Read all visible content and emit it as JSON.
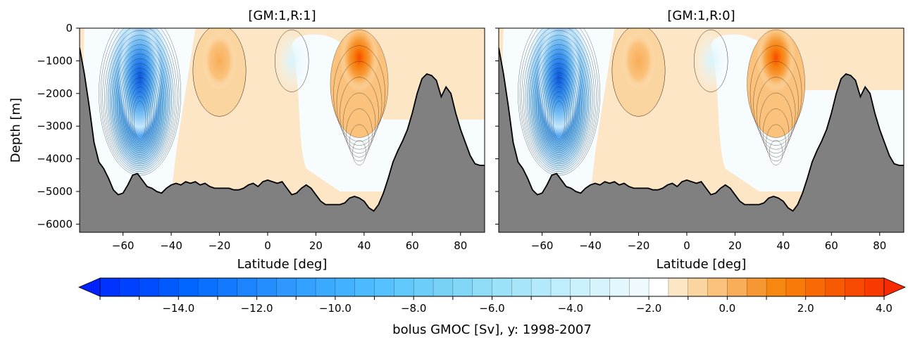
{
  "chart_data": [
    {
      "type": "contour",
      "title": "[GM:1,R:1]",
      "xlabel": "Latitude [deg]",
      "ylabel": "Depth [m]",
      "xlim": [
        -78,
        90
      ],
      "ylim": [
        -6250,
        0
      ],
      "xticks": [
        -60,
        -40,
        -20,
        0,
        20,
        40,
        60,
        80
      ],
      "yticks": [
        0,
        -1000,
        -2000,
        -3000,
        -4000,
        -5000,
        -6000
      ],
      "features": [
        {
          "kind": "negative-cell",
          "lat": -53,
          "depth": -1000,
          "value": -14.5
        },
        {
          "kind": "positive-cell",
          "lat": -20,
          "depth": -800,
          "value": 0.8
        },
        {
          "kind": "negative-cell",
          "lat": 10,
          "depth": -800,
          "value": -0.4
        },
        {
          "kind": "positive-cell",
          "lat": 38,
          "depth": -600,
          "value": 3.4
        }
      ],
      "deep_positive_fill_bottom": -2800
    },
    {
      "type": "contour",
      "title": "[GM:1,R:0]",
      "xlabel": "Latitude [deg]",
      "xlim": [
        -78,
        90
      ],
      "ylim": [
        -6250,
        0
      ],
      "xticks": [
        -60,
        -40,
        -20,
        0,
        20,
        40,
        60,
        80
      ],
      "features": [
        {
          "kind": "negative-cell",
          "lat": -53,
          "depth": -1000,
          "value": -14.5
        },
        {
          "kind": "positive-cell",
          "lat": -20,
          "depth": -800,
          "value": 0.9
        },
        {
          "kind": "negative-cell",
          "lat": 10,
          "depth": -800,
          "value": -0.4
        },
        {
          "kind": "positive-cell",
          "lat": 37,
          "depth": -600,
          "value": 3.2
        }
      ],
      "deep_positive_fill_bottom": -1900
    }
  ],
  "bathymetry": {
    "lat": [
      -78,
      -76,
      -74,
      -72,
      -70,
      -68,
      -66,
      -64,
      -62,
      -60,
      -58,
      -56,
      -54,
      -52,
      -50,
      -48,
      -46,
      -44,
      -42,
      -40,
      -38,
      -36,
      -34,
      -32,
      -30,
      -28,
      -26,
      -24,
      -22,
      -20,
      -18,
      -16,
      -14,
      -12,
      -10,
      -8,
      -6,
      -4,
      -2,
      0,
      2,
      4,
      6,
      8,
      10,
      12,
      14,
      16,
      18,
      20,
      22,
      24,
      26,
      28,
      30,
      32,
      34,
      36,
      38,
      40,
      42,
      44,
      46,
      48,
      50,
      52,
      54,
      56,
      58,
      60,
      62,
      64,
      66,
      68,
      70,
      72,
      74,
      76,
      78,
      80,
      82,
      84,
      86,
      88,
      90
    ],
    "depth": [
      -600,
      -1400,
      -2400,
      -3500,
      -4100,
      -4300,
      -4600,
      -4950,
      -5100,
      -5050,
      -4800,
      -4500,
      -4450,
      -4650,
      -4850,
      -4900,
      -5000,
      -5050,
      -4900,
      -4800,
      -4750,
      -4800,
      -4700,
      -4750,
      -4700,
      -4800,
      -4750,
      -4850,
      -4900,
      -4900,
      -4900,
      -4900,
      -4950,
      -4950,
      -4900,
      -4800,
      -4750,
      -4850,
      -4700,
      -4650,
      -4700,
      -4750,
      -4700,
      -4900,
      -5100,
      -5050,
      -4900,
      -4800,
      -4900,
      -5100,
      -5300,
      -5400,
      -5400,
      -5400,
      -5400,
      -5350,
      -5200,
      -5150,
      -5200,
      -5300,
      -5500,
      -5600,
      -5400,
      -5050,
      -4600,
      -4100,
      -3750,
      -3450,
      -3100,
      -2600,
      -2000,
      -1550,
      -1400,
      -1450,
      -1600,
      -2100,
      -1800,
      -2000,
      -2600,
      -3100,
      -3500,
      -3900,
      -4150,
      -4200,
      -4200
    ]
  },
  "colorbar": {
    "label": "bolus GMOC [Sv], y: 1998-2007",
    "min": -16,
    "max": 4,
    "step": 0.5,
    "ticks": [
      "-14.0",
      "-12.0",
      "-10.0",
      "-8.0",
      "-6.0",
      "-4.0",
      "-2.0",
      "0.0",
      "2.0",
      "4.0"
    ],
    "tick_values": [
      -14,
      -12,
      -10,
      -8,
      -6,
      -4,
      -2,
      0,
      2,
      4
    ],
    "colors": [
      "#0033ff",
      "#0040ff",
      "#004dff",
      "#005aff",
      "#0066ff",
      "#0a70ff",
      "#137aff",
      "#1c84ff",
      "#258eff",
      "#2e98ff",
      "#33a1ff",
      "#3aaaff",
      "#42b2ff",
      "#4bbaff",
      "#55c2ff",
      "#60c8fb",
      "#6bcdf8",
      "#77d2f6",
      "#83d7f6",
      "#8fdcf7",
      "#9be1f8",
      "#a7e5f9",
      "#b3e9fa",
      "#bfedfb",
      "#cbf1fc",
      "#d7f4fd",
      "#e3f7fe",
      "#eefaff",
      "#ffffff",
      "#fde6c6",
      "#fbd5a0",
      "#fac27c",
      "#f8ad58",
      "#f79733",
      "#f7880f",
      "#f87a08",
      "#f86a05",
      "#f85a04",
      "#f84a02",
      "#f83a00"
    ]
  }
}
